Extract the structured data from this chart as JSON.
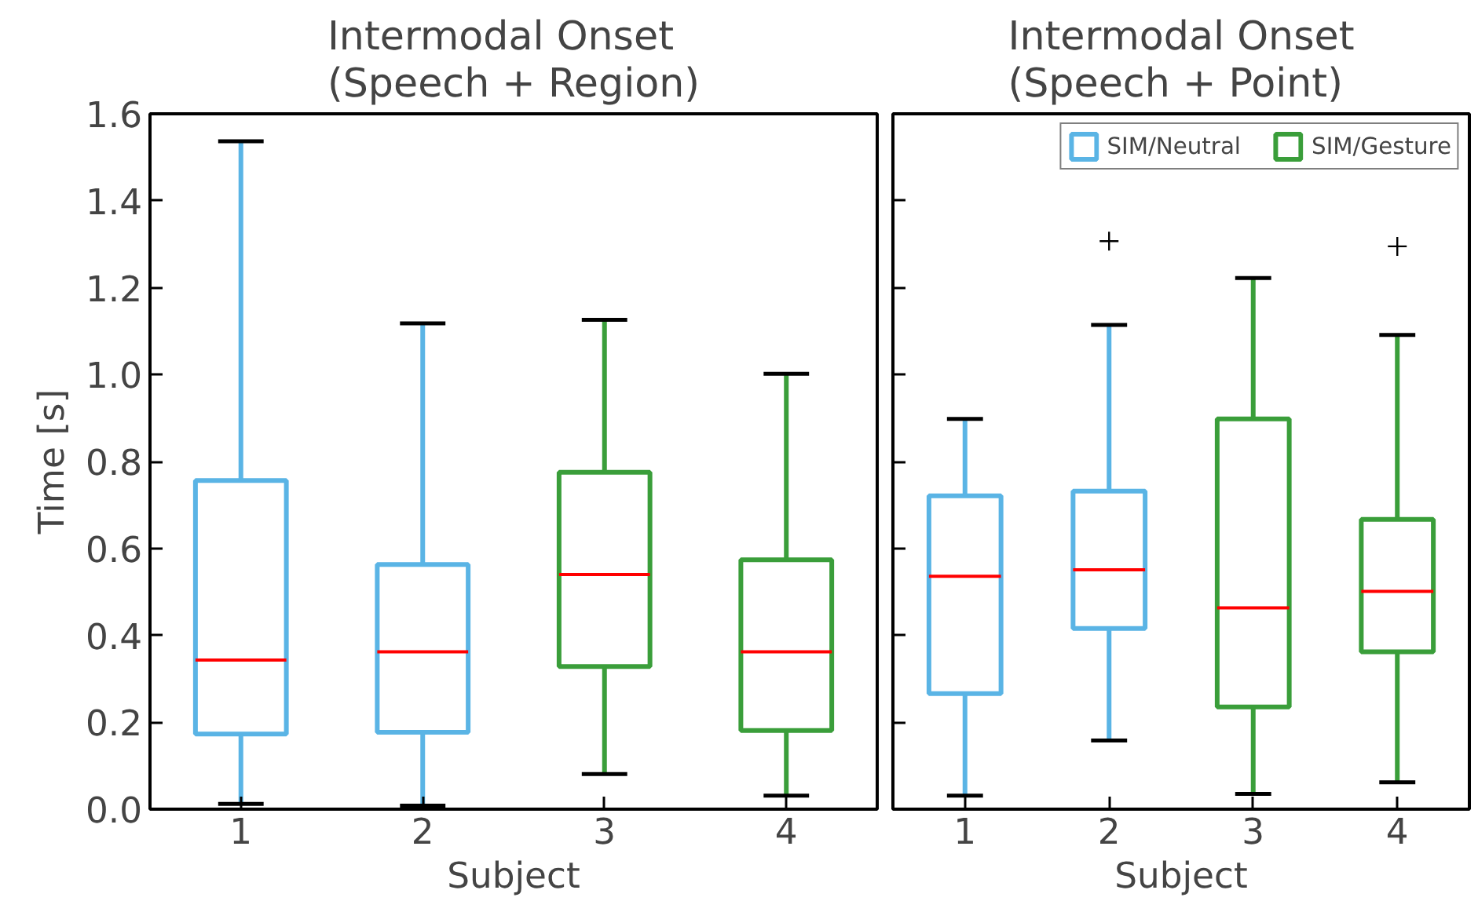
{
  "chart_data": [
    {
      "type": "box",
      "title": "Intermodal Onset\n(Speech + Region)",
      "xlabel": "Subject",
      "ylabel": "Time [s]",
      "categories": [
        "1",
        "2",
        "3",
        "4"
      ],
      "ylim": [
        0,
        1.6
      ],
      "yticks": [
        {
          "value": 0,
          "label": "0.0"
        },
        0.2,
        0.4,
        0.6,
        0.8,
        {
          "value": 1,
          "label": "1.0"
        },
        1.2,
        1.4,
        1.6
      ],
      "grid": false,
      "legend": false,
      "series": [
        {
          "color": "#5ab4e5",
          "boxes": [
            {
              "low": 0.012,
              "q1": 0.173,
              "median": 0.343,
              "q3": 0.756,
              "high": 1.537
            },
            {
              "low": 0.008,
              "q1": 0.177,
              "median": 0.362,
              "q3": 0.563,
              "high": 1.118
            },
            null,
            null
          ]
        },
        {
          "color": "#3a9e3a",
          "boxes": [
            null,
            null,
            {
              "low": 0.081,
              "q1": 0.328,
              "median": 0.54,
              "q3": 0.775,
              "high": 1.126
            },
            {
              "low": 0.031,
              "q1": 0.181,
              "median": 0.362,
              "q3": 0.574,
              "high": 1.002
            }
          ]
        }
      ]
    },
    {
      "type": "box",
      "title": "Intermodal Onset\n(Speech + Point)",
      "xlabel": "Subject",
      "categories": [
        "1",
        "2",
        "3",
        "4"
      ],
      "ylim": [
        0,
        1.6
      ],
      "yticks": [
        0.0,
        0.2,
        0.4,
        0.6,
        0.8,
        1.0,
        1.2,
        1.4,
        1.6
      ],
      "grid": false,
      "legend": "top right",
      "tick_labels": "x",
      "series": [
        {
          "name": "SIM/Neutral",
          "color": "#5ab4e5",
          "boxes": [
            {
              "low": 0.031,
              "q1": 0.266,
              "median": 0.536,
              "q3": 0.721,
              "high": 0.898
            },
            {
              "low": 0.158,
              "q1": 0.416,
              "median": 0.551,
              "q3": 0.732,
              "high": 1.114,
              "outliers": [
                1.307
              ]
            },
            null,
            null
          ]
        },
        {
          "name": "SIM/Gesture",
          "color": "#3a9e3a",
          "boxes": [
            null,
            null,
            {
              "low": 0.035,
              "q1": 0.235,
              "median": 0.463,
              "q3": 0.898,
              "high": 1.222
            },
            {
              "low": 0.062,
              "q1": 0.362,
              "median": 0.501,
              "q3": 0.667,
              "high": 1.091,
              "outliers": [
                1.295
              ]
            }
          ]
        }
      ]
    }
  ]
}
